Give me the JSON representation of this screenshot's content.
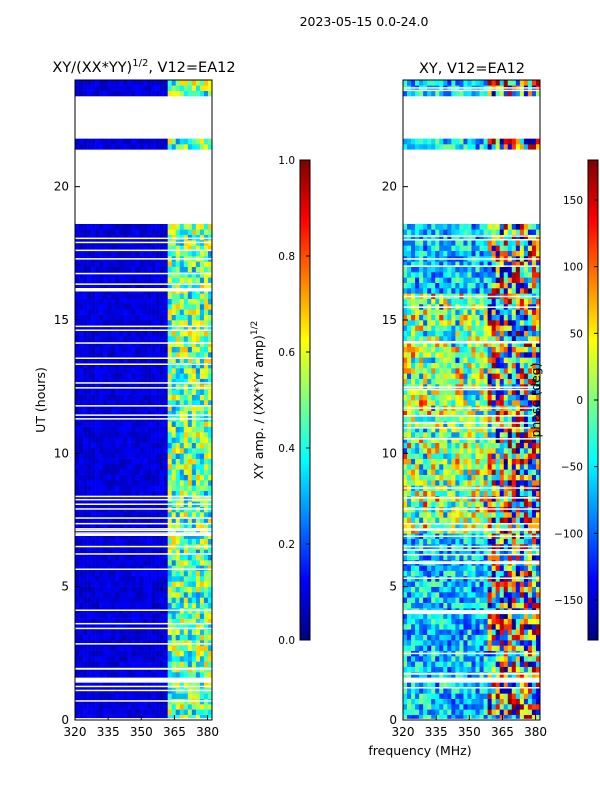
{
  "figure": {
    "suptitle": "2023-05-15 0.0-24.0",
    "xlabel": "frequency (MHz)"
  },
  "colors": {
    "jet": [
      "#00007f",
      "#0000ff",
      "#007fff",
      "#00ffff",
      "#7fff7f",
      "#ffff00",
      "#ff7f00",
      "#ff0000",
      "#7f0000"
    ],
    "gap": "#ffffff",
    "axis": "#000000"
  },
  "chart_data": [
    {
      "type": "heatmap",
      "name": "amplitude-ratio",
      "title_main": "XY/(XX*YY)",
      "title_sup": "1/2",
      "title_tail": ", V12=EA12",
      "xlabel": "",
      "ylabel": "UT (hours)",
      "xlim": [
        320,
        382
      ],
      "ylim": [
        0,
        24
      ],
      "xticks": [
        320,
        335,
        350,
        365,
        380
      ],
      "yticks": [
        0,
        5,
        10,
        15,
        20
      ],
      "colorbar": {
        "label_main": "XY amp. / (XX*YY amp)",
        "label_sup": "1/2",
        "range": [
          0.0,
          1.0
        ],
        "ticks": [
          "0.0",
          "0.2",
          "0.4",
          "0.6",
          "0.8",
          "1.0"
        ]
      },
      "data_gaps_hours": [
        [
          1.5,
          1.7
        ],
        [
          18.7,
          21.3
        ],
        [
          21.9,
          23.4
        ]
      ],
      "low_band_value": 0.05,
      "high_band_mhz": [
        362,
        382
      ],
      "high_band_value": 0.45
    },
    {
      "type": "heatmap",
      "name": "phase",
      "title": "XY, V12=EA12",
      "xlabel": "",
      "ylabel": "",
      "xlim": [
        320,
        382
      ],
      "ylim": [
        0,
        24
      ],
      "xticks": [
        320,
        335,
        350,
        365,
        380
      ],
      "yticks": [
        0,
        5,
        10,
        15,
        20
      ],
      "colorbar": {
        "label": "phase (deg)",
        "range": [
          -180,
          180
        ],
        "ticks": [
          "−150",
          "−100",
          "−50",
          "0",
          "50",
          "100",
          "150"
        ]
      },
      "data_gaps_hours": [
        [
          1.5,
          1.7
        ],
        [
          18.7,
          21.3
        ],
        [
          21.9,
          23.4
        ]
      ]
    }
  ]
}
